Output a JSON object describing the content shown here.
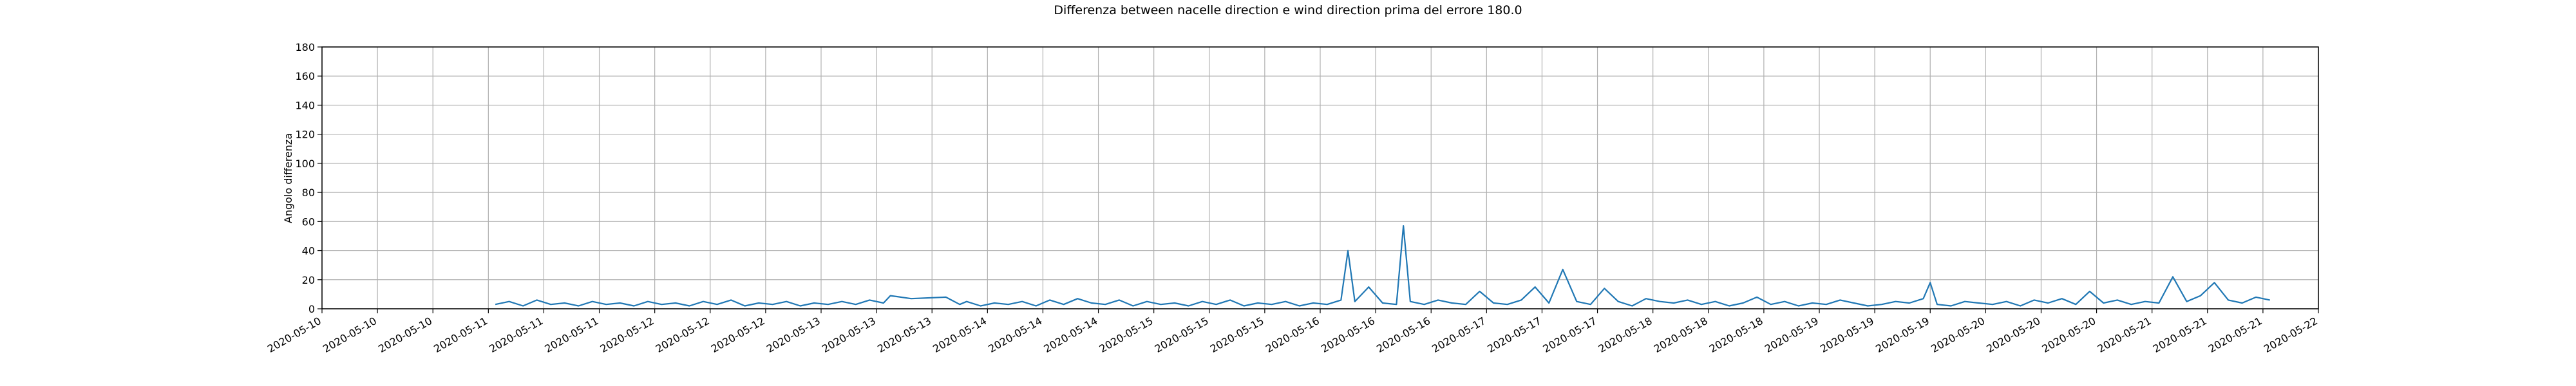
{
  "chart_data": {
    "type": "line",
    "title": "Differenza between nacelle direction e wind direction prima del errore 180.0",
    "xlabel": "",
    "ylabel": "Angolo differenza",
    "ylim": [
      0,
      180
    ],
    "yticks": [
      0,
      20,
      40,
      60,
      80,
      100,
      120,
      140,
      160,
      180
    ],
    "xlim": [
      "2020-05-10T00:00",
      "2020-05-22T00:00"
    ],
    "xticks": [
      "2020-05-10T00:00",
      "2020-05-10T08:00",
      "2020-05-10T16:00",
      "2020-05-11T00:00",
      "2020-05-11T08:00",
      "2020-05-11T16:00",
      "2020-05-12T00:00",
      "2020-05-12T08:00",
      "2020-05-12T16:00",
      "2020-05-13T00:00",
      "2020-05-13T08:00",
      "2020-05-13T16:00",
      "2020-05-14T00:00",
      "2020-05-14T08:00",
      "2020-05-14T16:00",
      "2020-05-15T00:00",
      "2020-05-15T08:00",
      "2020-05-15T16:00",
      "2020-05-16T00:00",
      "2020-05-16T08:00",
      "2020-05-16T16:00",
      "2020-05-17T00:00",
      "2020-05-17T08:00",
      "2020-05-17T16:00",
      "2020-05-18T00:00",
      "2020-05-18T08:00",
      "2020-05-18T16:00",
      "2020-05-19T00:00",
      "2020-05-19T08:00",
      "2020-05-19T16:00",
      "2020-05-20T00:00",
      "2020-05-20T08:00",
      "2020-05-20T16:00",
      "2020-05-21T00:00",
      "2020-05-21T08:00",
      "2020-05-21T16:00",
      "2020-05-22T00:00"
    ],
    "xtick_labels": [
      "2020-05-10",
      "2020-05-10",
      "2020-05-10",
      "2020-05-11",
      "2020-05-11",
      "2020-05-11",
      "2020-05-12",
      "2020-05-12",
      "2020-05-12",
      "2020-05-13",
      "2020-05-13",
      "2020-05-13",
      "2020-05-14",
      "2020-05-14",
      "2020-05-14",
      "2020-05-15",
      "2020-05-15",
      "2020-05-15",
      "2020-05-16",
      "2020-05-16",
      "2020-05-16",
      "2020-05-17",
      "2020-05-17",
      "2020-05-17",
      "2020-05-18",
      "2020-05-18",
      "2020-05-18",
      "2020-05-19",
      "2020-05-19",
      "2020-05-19",
      "2020-05-20",
      "2020-05-20",
      "2020-05-20",
      "2020-05-21",
      "2020-05-21",
      "2020-05-21",
      "2020-05-22"
    ],
    "grid": true,
    "legend": "none",
    "series": [
      {
        "color": "#1f77b4",
        "x": [
          "2020-05-11T01:00",
          "2020-05-11T03:00",
          "2020-05-11T05:00",
          "2020-05-11T07:00",
          "2020-05-11T09:00",
          "2020-05-11T11:00",
          "2020-05-11T13:00",
          "2020-05-11T15:00",
          "2020-05-11T17:00",
          "2020-05-11T19:00",
          "2020-05-11T21:00",
          "2020-05-11T23:00",
          "2020-05-12T01:00",
          "2020-05-12T03:00",
          "2020-05-12T05:00",
          "2020-05-12T07:00",
          "2020-05-12T09:00",
          "2020-05-12T11:00",
          "2020-05-12T13:00",
          "2020-05-12T15:00",
          "2020-05-12T17:00",
          "2020-05-12T19:00",
          "2020-05-12T21:00",
          "2020-05-12T23:00",
          "2020-05-13T01:00",
          "2020-05-13T03:00",
          "2020-05-13T05:00",
          "2020-05-13T07:00",
          "2020-05-13T09:00",
          "2020-05-13T10:00",
          "2020-05-13T13:00",
          "2020-05-13T18:00",
          "2020-05-13T20:00",
          "2020-05-13T21:00",
          "2020-05-13T23:00",
          "2020-05-14T01:00",
          "2020-05-14T03:00",
          "2020-05-14T05:00",
          "2020-05-14T07:00",
          "2020-05-14T09:00",
          "2020-05-14T11:00",
          "2020-05-14T13:00",
          "2020-05-14T15:00",
          "2020-05-14T17:00",
          "2020-05-14T19:00",
          "2020-05-14T21:00",
          "2020-05-14T23:00",
          "2020-05-15T01:00",
          "2020-05-15T03:00",
          "2020-05-15T05:00",
          "2020-05-15T07:00",
          "2020-05-15T09:00",
          "2020-05-15T11:00",
          "2020-05-15T13:00",
          "2020-05-15T15:00",
          "2020-05-15T17:00",
          "2020-05-15T19:00",
          "2020-05-15T21:00",
          "2020-05-15T23:00",
          "2020-05-16T01:00",
          "2020-05-16T03:00",
          "2020-05-16T04:00",
          "2020-05-16T05:00",
          "2020-05-16T07:00",
          "2020-05-16T09:00",
          "2020-05-16T11:00",
          "2020-05-16T12:00",
          "2020-05-16T13:00",
          "2020-05-16T15:00",
          "2020-05-16T17:00",
          "2020-05-16T19:00",
          "2020-05-16T21:00",
          "2020-05-16T23:00",
          "2020-05-17T01:00",
          "2020-05-17T03:00",
          "2020-05-17T05:00",
          "2020-05-17T07:00",
          "2020-05-17T09:00",
          "2020-05-17T11:00",
          "2020-05-17T13:00",
          "2020-05-17T15:00",
          "2020-05-17T17:00",
          "2020-05-17T19:00",
          "2020-05-17T21:00",
          "2020-05-17T23:00",
          "2020-05-18T01:00",
          "2020-05-18T03:00",
          "2020-05-18T05:00",
          "2020-05-18T07:00",
          "2020-05-18T09:00",
          "2020-05-18T11:00",
          "2020-05-18T13:00",
          "2020-05-18T15:00",
          "2020-05-18T17:00",
          "2020-05-18T19:00",
          "2020-05-18T21:00",
          "2020-05-18T23:00",
          "2020-05-19T01:00",
          "2020-05-19T03:00",
          "2020-05-19T05:00",
          "2020-05-19T07:00",
          "2020-05-19T09:00",
          "2020-05-19T11:00",
          "2020-05-19T13:00",
          "2020-05-19T15:00",
          "2020-05-19T16:00",
          "2020-05-19T17:00",
          "2020-05-19T19:00",
          "2020-05-19T21:00",
          "2020-05-19T23:00",
          "2020-05-20T01:00",
          "2020-05-20T03:00",
          "2020-05-20T05:00",
          "2020-05-20T07:00",
          "2020-05-20T09:00",
          "2020-05-20T11:00",
          "2020-05-20T13:00",
          "2020-05-20T15:00",
          "2020-05-20T17:00",
          "2020-05-20T19:00",
          "2020-05-20T21:00",
          "2020-05-20T23:00",
          "2020-05-21T01:00",
          "2020-05-21T03:00",
          "2020-05-21T05:00",
          "2020-05-21T07:00",
          "2020-05-21T09:00",
          "2020-05-21T11:00",
          "2020-05-21T13:00",
          "2020-05-21T15:00",
          "2020-05-21T17:00"
        ],
        "y": [
          3,
          5,
          2,
          6,
          3,
          4,
          2,
          5,
          3,
          4,
          2,
          5,
          3,
          4,
          2,
          5,
          3,
          6,
          2,
          4,
          3,
          5,
          2,
          4,
          3,
          5,
          3,
          6,
          4,
          9,
          7,
          8,
          3,
          5,
          2,
          4,
          3,
          5,
          2,
          6,
          3,
          7,
          4,
          3,
          6,
          2,
          5,
          3,
          4,
          2,
          5,
          3,
          6,
          2,
          4,
          3,
          5,
          2,
          4,
          3,
          6,
          40,
          5,
          15,
          4,
          3,
          57,
          5,
          3,
          6,
          4,
          3,
          12,
          4,
          3,
          6,
          15,
          4,
          27,
          5,
          3,
          14,
          5,
          2,
          7,
          5,
          4,
          6,
          3,
          5,
          2,
          4,
          8,
          3,
          5,
          2,
          4,
          3,
          6,
          4,
          2,
          3,
          5,
          4,
          7,
          18,
          3,
          2,
          5,
          4,
          3,
          5,
          2,
          6,
          4,
          7,
          3,
          12,
          4,
          6,
          3,
          5,
          4,
          22,
          5,
          9,
          18,
          6,
          4,
          8,
          6
        ]
      }
    ]
  }
}
